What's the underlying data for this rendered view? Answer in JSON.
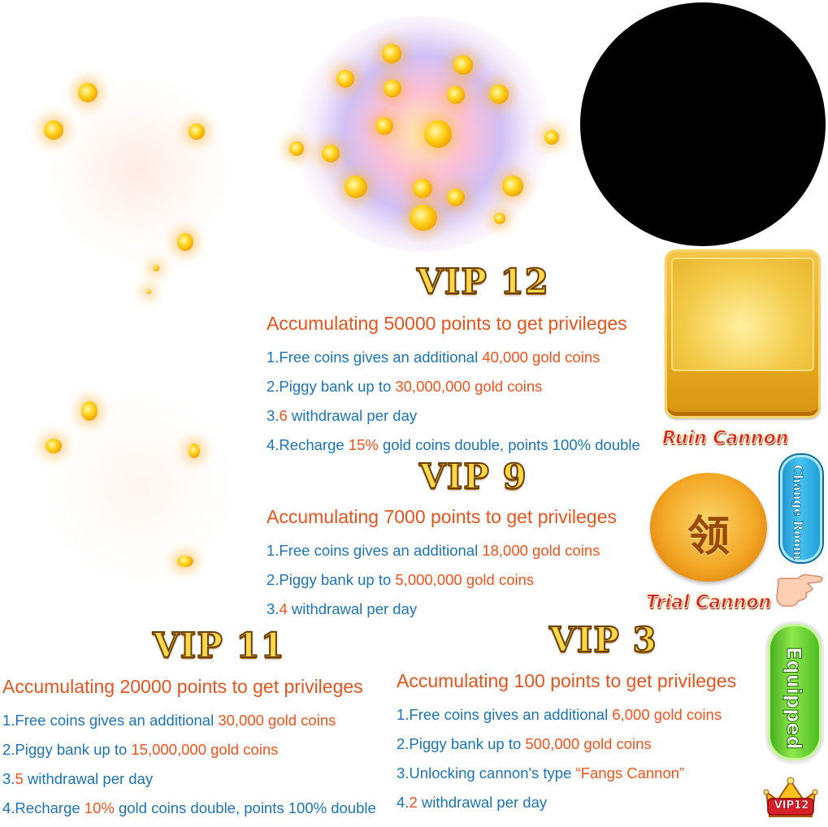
{
  "colors": {
    "heading": "#e4541e",
    "body_text": "#1d73b5",
    "highlight": "#f0541e",
    "vip_gold": "#ffd84a",
    "caption_red": "#d9261c"
  },
  "tiers": {
    "vip12": {
      "title": "VIP 12",
      "heading": "Accumulating 50000 points to get privileges",
      "l1": {
        "pre": "1.Free coins gives an additional ",
        "hl": "40,000 gold coins"
      },
      "l2": {
        "pre": "2.Piggy bank up to ",
        "hl": "30,000,000 gold coins"
      },
      "l3": {
        "pre": "3.",
        "hl": "6",
        "post": " withdrawal per day"
      },
      "l4": {
        "pre": "4.Recharge ",
        "hl": "15%",
        "post": " gold coins double, points 100% double"
      }
    },
    "vip9": {
      "title": "VIP 9",
      "heading": "Accumulating 7000 points to get privileges",
      "l1": {
        "pre": "1.Free coins gives an additional ",
        "hl": "18,000 gold coins"
      },
      "l2": {
        "pre": "2.Piggy bank up to ",
        "hl": "5,000,000 gold coins"
      },
      "l3": {
        "pre": "3.",
        "hl": "4",
        "post": " withdrawal per day"
      }
    },
    "vip11": {
      "title": "VIP 11",
      "heading": "Accumulating 20000 points to get privileges",
      "l1": {
        "pre": "1.Free coins gives an additional ",
        "hl": "30,000 gold coins"
      },
      "l2": {
        "pre": "2.Piggy bank up to ",
        "hl": "15,000,000 gold coins"
      },
      "l3": {
        "pre": "3.",
        "hl": "5",
        "post": " withdrawal per day"
      },
      "l4": {
        "pre": "4.Recharge ",
        "hl": "10%",
        "post": " gold coins double, points 100% double"
      }
    },
    "vip3": {
      "title": "VIP 3",
      "heading": "Accumulating 100 points to get privileges",
      "l1": {
        "pre": "1.Free coins gives an additional ",
        "hl": "6,000 gold coins"
      },
      "l2": {
        "pre": "2.Piggy bank up to ",
        "hl": "500,000 gold coins"
      },
      "l3": {
        "pre": "3.Unlocking cannon's type ",
        "hl": "“Fangs Cannon”"
      },
      "l4": {
        "pre": "4.",
        "hl": "2",
        "post": " withdrawal per day"
      }
    }
  },
  "widgets": {
    "ruin_cannon_label": "Ruin Cannon",
    "trial_cannon_label": "Trial Cannon",
    "trial_button_glyph": "领",
    "change_room_label": "Change Room",
    "equipped_label": "Equipped",
    "vip_badge_text": "VIP12",
    "icons": [
      "coin-burst-icon",
      "pointing-hand-icon",
      "crown-icon"
    ]
  }
}
